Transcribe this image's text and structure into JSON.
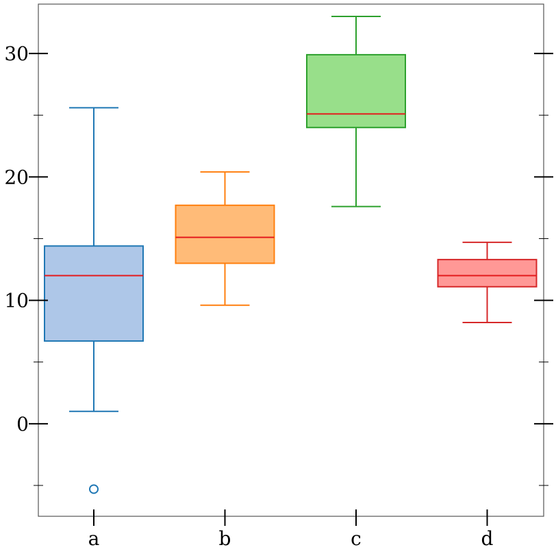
{
  "chart_data": {
    "type": "box",
    "title": "",
    "xlabel": "",
    "ylabel": "",
    "ylim": [
      -7.5,
      34
    ],
    "yticks": [
      0,
      10,
      20,
      30
    ],
    "y_minor_ticks": [
      -5,
      5,
      15,
      25
    ],
    "grid": false,
    "categories": [
      "a",
      "b",
      "c",
      "d"
    ],
    "boxes": [
      {
        "label": "a",
        "whisker_low": 1.0,
        "q1": 6.7,
        "median": 12.0,
        "q3": 14.4,
        "whisker_high": 25.6,
        "outliers": [
          -5.3
        ],
        "edge_color": "#1f77b4",
        "fill_color": "#aec7e8"
      },
      {
        "label": "b",
        "whisker_low": 9.6,
        "q1": 13.0,
        "median": 15.1,
        "q3": 17.7,
        "whisker_high": 20.4,
        "outliers": [],
        "edge_color": "#ff7f0e",
        "fill_color": "#ffbb78"
      },
      {
        "label": "c",
        "whisker_low": 17.6,
        "q1": 24.0,
        "median": 25.1,
        "q3": 29.9,
        "whisker_high": 33.0,
        "outliers": [],
        "edge_color": "#2ca02c",
        "fill_color": "#98df8a"
      },
      {
        "label": "d",
        "whisker_low": 8.2,
        "q1": 11.1,
        "median": 12.0,
        "q3": 13.3,
        "whisker_high": 14.7,
        "outliers": [],
        "edge_color": "#d62728",
        "fill_color": "#ff9896"
      }
    ],
    "median_color": "#e41a1c",
    "axis_color": "#555555"
  }
}
